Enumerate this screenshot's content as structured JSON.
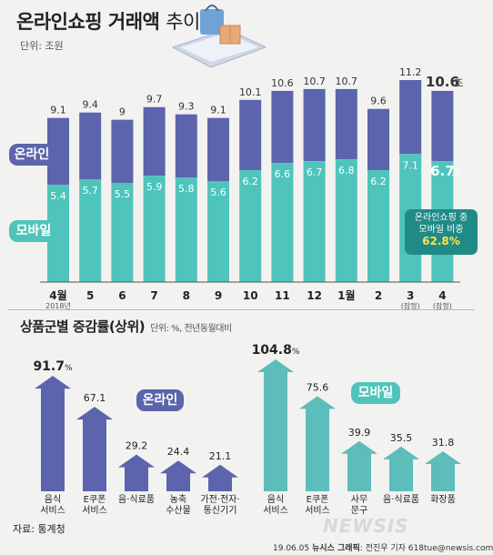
{
  "header": {
    "title_bold": "온라인쇼핑 거래액",
    "title_light": "추이",
    "unit": "단위: 조원"
  },
  "legend": {
    "online": "온라인",
    "mobile": "모바일"
  },
  "callout": {
    "line1": "온라인쇼핑 중",
    "line2": "모바일 비중",
    "value": "62.8%"
  },
  "subheader": {
    "title": "상품군별 증감률(상위)",
    "unit": "단위: %, 전년동월대비"
  },
  "footer": {
    "source": "자료: 통계청",
    "credit_date": "19.06.05",
    "credit_org": "뉴시스 그래픽",
    "credit_name": "전진우 기자 618tue@newsis.com",
    "watermark": "NEWSIS"
  },
  "colors": {
    "online": "#5c64ad",
    "mobile": "#4fc4bb",
    "online_up": "#5c64ad",
    "mobile_up": "#5dbdbb",
    "callout": "#1f8a86"
  },
  "chart_data": [
    {
      "type": "bar",
      "categories": [
        "4월",
        "5",
        "6",
        "7",
        "8",
        "9",
        "10",
        "11",
        "12",
        "1월",
        "2",
        "3",
        "4"
      ],
      "category_sublabels": [
        "2018년",
        "",
        "",
        "",
        "",
        "",
        "",
        "",
        "",
        "",
        "",
        "(잠정)",
        "(잠정)"
      ],
      "series": [
        {
          "name": "온라인",
          "values": [
            9.1,
            9.4,
            9,
            9.7,
            9.3,
            9.1,
            10.1,
            10.6,
            10.7,
            10.7,
            9.6,
            11.2,
            10.6
          ],
          "labels": [
            "9.1",
            "9.4",
            "9",
            "9.7",
            "9.3",
            "9.1",
            "10.1",
            "10.6",
            "10.7",
            "10.7",
            "9.6",
            "11.2",
            "10.6"
          ]
        },
        {
          "name": "모바일",
          "values": [
            5.4,
            5.7,
            5.5,
            5.9,
            5.8,
            5.6,
            6.2,
            6.6,
            6.7,
            6.8,
            6.2,
            7.1,
            6.7
          ],
          "labels": [
            "5.4",
            "5.7",
            "5.5",
            "5.9",
            "5.8",
            "5.6",
            "6.2",
            "6.6",
            "6.7",
            "6.8",
            "6.2",
            "7.1",
            "6.7"
          ]
        }
      ],
      "last_unit": "조",
      "ylim": [
        0,
        11.2
      ]
    },
    {
      "type": "bar",
      "group": "온라인",
      "categories": [
        "음식 서비스",
        "E쿠폰 서비스",
        "음·식료품",
        "농축 수산물",
        "가전·전자· 통신기기"
      ],
      "values": [
        91.7,
        67.1,
        29.2,
        24.4,
        21.1
      ],
      "labels": [
        "91.7",
        "67.1",
        "29.2",
        "24.4",
        "21.1"
      ],
      "first_unit": "%"
    },
    {
      "type": "bar",
      "group": "모바일",
      "categories": [
        "음식 서비스",
        "E쿠폰 서비스",
        "사무 문구",
        "음·식료품",
        "화장품"
      ],
      "values": [
        104.8,
        75.6,
        39.9,
        35.5,
        31.8
      ],
      "labels": [
        "104.8",
        "75.6",
        "39.9",
        "35.5",
        "31.8"
      ],
      "first_unit": "%"
    }
  ]
}
